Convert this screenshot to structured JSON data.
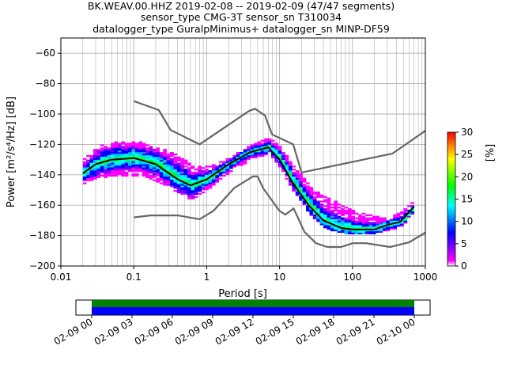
{
  "chart_data": {
    "type": "heatmap",
    "title_lines": [
      "BK.WEAV.00.HHZ   2019-02-08 -- 2019-02-09  (47/47 segments)",
      "sensor_type CMG-3T sensor_sn T310034",
      "datalogger_type GuralpMinimus+ datalogger_sn MINP-DF59"
    ],
    "xlabel": "Period [s]",
    "ylabel": "Power [m²/s⁴/Hz] [dB]",
    "x_scale": "log",
    "xlim": [
      0.01,
      1000
    ],
    "ylim": [
      -200,
      -50
    ],
    "x_ticks": [
      {
        "value": 0.01,
        "label": "0.01"
      },
      {
        "value": 0.1,
        "label": "0.1"
      },
      {
        "value": 1,
        "label": "1"
      },
      {
        "value": 10,
        "label": "10"
      },
      {
        "value": 100,
        "label": "100"
      },
      {
        "value": 1000,
        "label": "1000"
      }
    ],
    "y_ticks": [
      {
        "value": -60,
        "label": "−60"
      },
      {
        "value": -80,
        "label": "−80"
      },
      {
        "value": -100,
        "label": "−100"
      },
      {
        "value": -120,
        "label": "−120"
      },
      {
        "value": -140,
        "label": "−140"
      },
      {
        "value": -160,
        "label": "−160"
      },
      {
        "value": -180,
        "label": "−180"
      },
      {
        "value": -200,
        "label": "−200"
      }
    ],
    "grid": true,
    "colorbar": {
      "label": "[%]",
      "range": [
        0,
        30
      ],
      "ticks": [
        {
          "value": 0,
          "label": "0"
        },
        {
          "value": 5,
          "label": "5"
        },
        {
          "value": 10,
          "label": "10"
        },
        {
          "value": 15,
          "label": "15"
        },
        {
          "value": 20,
          "label": "20"
        },
        {
          "value": 25,
          "label": "25"
        },
        {
          "value": 30,
          "label": "30"
        }
      ],
      "colors": [
        "#ffffff",
        "#ff00ff",
        "#0000ff",
        "#00ffff",
        "#00ff00",
        "#ffff00",
        "#ff8000",
        "#ff0000"
      ]
    },
    "nhnm": {
      "x": [
        0.1,
        0.22,
        0.32,
        0.8,
        3.8,
        4.6,
        6.3,
        7.9,
        15.4,
        20,
        354.8,
        1000
      ],
      "y": [
        -91.5,
        -97.4,
        -110.5,
        -120,
        -98,
        -96.5,
        -101,
        -113.5,
        -120,
        -138.5,
        -126,
        -111
      ]
    },
    "nlnm": {
      "x": [
        0.1,
        0.17,
        0.4,
        0.8,
        1.24,
        2.4,
        4.3,
        5,
        6,
        10,
        12,
        15.6,
        21.9,
        31.6,
        45,
        70,
        101,
        154,
        328,
        600,
        1000
      ],
      "y": [
        -168,
        -166.7,
        -166.7,
        -169.2,
        -163.7,
        -148.6,
        -141.1,
        -141.1,
        -149,
        -163.8,
        -166.2,
        -162.1,
        -177.5,
        -185,
        -187.5,
        -187.5,
        -185,
        -185,
        -187.5,
        -184.4,
        -178
      ]
    },
    "mode_curve": {
      "x": [
        0.02,
        0.03,
        0.05,
        0.1,
        0.2,
        0.4,
        0.6,
        1,
        2,
        4,
        7,
        10,
        15,
        25,
        40,
        70,
        100,
        200,
        300,
        450,
        700
      ],
      "y": [
        -139,
        -133,
        -130,
        -129,
        -133,
        -143,
        -147,
        -143,
        -133,
        -125,
        -122,
        -130,
        -145,
        -160,
        -170,
        -175,
        -176,
        -176,
        -173,
        -171,
        -161
      ]
    },
    "psd_envelope": {
      "x": [
        0.02,
        0.03,
        0.05,
        0.1,
        0.2,
        0.4,
        0.6,
        1,
        2,
        4,
        7,
        10,
        15,
        25,
        40,
        70,
        100,
        200,
        300,
        450,
        700
      ],
      "upper": [
        -130,
        -122,
        -118,
        -118,
        -122,
        -128,
        -134,
        -135,
        -129,
        -120,
        -116,
        -122,
        -135,
        -147,
        -155,
        -160,
        -164,
        -168,
        -168,
        -165,
        -157
      ],
      "lower": [
        -146,
        -143,
        -141,
        -141,
        -145,
        -153,
        -157,
        -150,
        -139,
        -130,
        -127,
        -137,
        -152,
        -167,
        -176,
        -179,
        -179,
        -179,
        -177,
        -175,
        -164
      ]
    },
    "timeline": {
      "tick_labels": [
        "02-09 00",
        "02-09 03",
        "02-09 06",
        "02-09 09",
        "02-09 12",
        "02-09 15",
        "02-09 18",
        "02-09 21",
        "02-10 00"
      ],
      "coverage_colors": [
        "#008000",
        "#0000ff"
      ]
    }
  }
}
